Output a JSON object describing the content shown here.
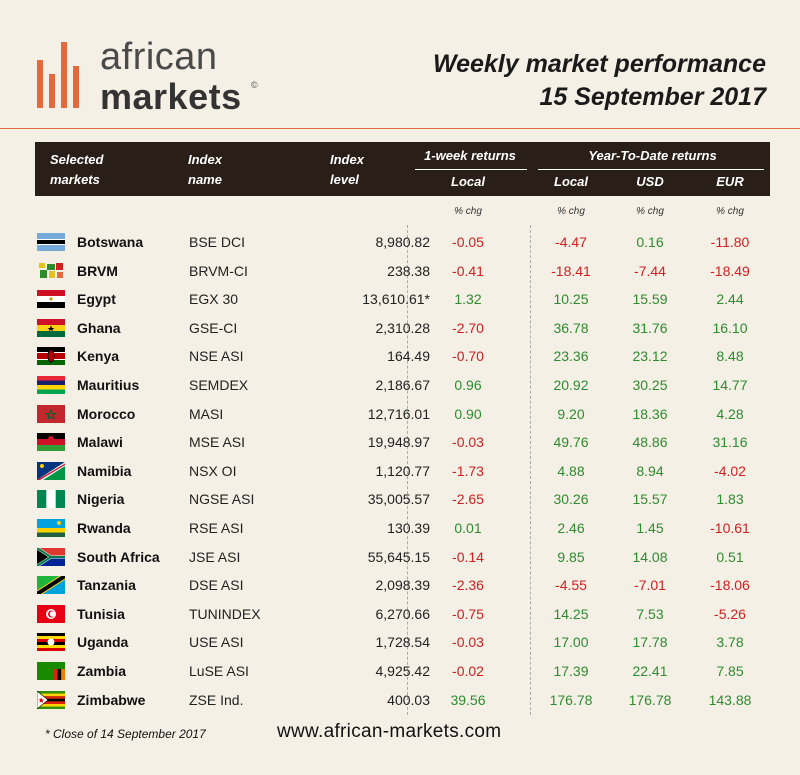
{
  "brand": {
    "line1": "african",
    "line2": "markets",
    "reg": "©"
  },
  "title": {
    "line1": "Weekly market performance",
    "line2": "15 September 2017"
  },
  "header": {
    "col_market": "Selected markets",
    "col_index": "Index name",
    "col_level": "Index level",
    "group_week": "1-week returns",
    "group_ytd": "Year-To-Date returns",
    "sub_week_local": "Local",
    "sub_ytd_local": "Local",
    "sub_ytd_usd": "USD",
    "sub_ytd_eur": "EUR",
    "pct_label": "% chg"
  },
  "footer": {
    "note": "* Close of 14 September 2017",
    "url": "www.african-markets.com"
  },
  "colors": {
    "positive": "#2e8b2e",
    "negative": "#d11f1f",
    "accent": "#e3693c",
    "header_bg": "#2a1e18"
  },
  "chart_data": {
    "type": "table",
    "columns": [
      "Selected markets",
      "Index name",
      "Index level",
      "1-week returns Local % chg",
      "YTD Local % chg",
      "YTD USD % chg",
      "YTD EUR % chg"
    ],
    "rows": [
      {
        "market": "Botswana",
        "flag": "botswana-flag",
        "index": "BSE DCI",
        "level": "8,980.82",
        "week": -0.05,
        "ytd_local": -4.47,
        "ytd_usd": 0.16,
        "ytd_eur": -11.8
      },
      {
        "market": "BRVM",
        "flag": "brvm-flag",
        "index": "BRVM-CI",
        "level": "238.38",
        "week": -0.41,
        "ytd_local": -18.41,
        "ytd_usd": -7.44,
        "ytd_eur": -18.49
      },
      {
        "market": "Egypt",
        "flag": "egypt-flag",
        "index": "EGX 30",
        "level": "13,610.61*",
        "week": 1.32,
        "ytd_local": 10.25,
        "ytd_usd": 15.59,
        "ytd_eur": 2.44
      },
      {
        "market": "Ghana",
        "flag": "ghana-flag",
        "index": "GSE-CI",
        "level": "2,310.28",
        "week": -2.7,
        "ytd_local": 36.78,
        "ytd_usd": 31.76,
        "ytd_eur": 16.1
      },
      {
        "market": "Kenya",
        "flag": "kenya-flag",
        "index": "NSE ASI",
        "level": "164.49",
        "week": -0.7,
        "ytd_local": 23.36,
        "ytd_usd": 23.12,
        "ytd_eur": 8.48
      },
      {
        "market": "Mauritius",
        "flag": "mauritius-flag",
        "index": "SEMDEX",
        "level": "2,186.67",
        "week": 0.96,
        "ytd_local": 20.92,
        "ytd_usd": 30.25,
        "ytd_eur": 14.77
      },
      {
        "market": "Morocco",
        "flag": "morocco-flag",
        "index": "MASI",
        "level": "12,716.01",
        "week": 0.9,
        "ytd_local": 9.2,
        "ytd_usd": 18.36,
        "ytd_eur": 4.28
      },
      {
        "market": "Malawi",
        "flag": "malawi-flag",
        "index": "MSE ASI",
        "level": "19,948.97",
        "week": -0.03,
        "ytd_local": 49.76,
        "ytd_usd": 48.86,
        "ytd_eur": 31.16
      },
      {
        "market": "Namibia",
        "flag": "namibia-flag",
        "index": "NSX OI",
        "level": "1,120.77",
        "week": -1.73,
        "ytd_local": 4.88,
        "ytd_usd": 8.94,
        "ytd_eur": -4.02
      },
      {
        "market": "Nigeria",
        "flag": "nigeria-flag",
        "index": "NGSE ASI",
        "level": "35,005.57",
        "week": -2.65,
        "ytd_local": 30.26,
        "ytd_usd": 15.57,
        "ytd_eur": 1.83
      },
      {
        "market": "Rwanda",
        "flag": "rwanda-flag",
        "index": "RSE ASI",
        "level": "130.39",
        "week": 0.01,
        "ytd_local": 2.46,
        "ytd_usd": 1.45,
        "ytd_eur": -10.61
      },
      {
        "market": "South Africa",
        "flag": "south-africa-flag",
        "index": "JSE ASI",
        "level": "55,645.15",
        "week": -0.14,
        "ytd_local": 9.85,
        "ytd_usd": 14.08,
        "ytd_eur": 0.51
      },
      {
        "market": "Tanzania",
        "flag": "tanzania-flag",
        "index": "DSE ASI",
        "level": "2,098.39",
        "week": -2.36,
        "ytd_local": -4.55,
        "ytd_usd": -7.01,
        "ytd_eur": -18.06
      },
      {
        "market": "Tunisia",
        "flag": "tunisia-flag",
        "index": "TUNINDEX",
        "level": "6,270.66",
        "week": -0.75,
        "ytd_local": 14.25,
        "ytd_usd": 7.53,
        "ytd_eur": -5.26
      },
      {
        "market": "Uganda",
        "flag": "uganda-flag",
        "index": "USE ASI",
        "level": "1,728.54",
        "week": -0.03,
        "ytd_local": 17.0,
        "ytd_usd": 17.78,
        "ytd_eur": 3.78
      },
      {
        "market": "Zambia",
        "flag": "zambia-flag",
        "index": "LuSE ASI",
        "level": "4,925.42",
        "week": -0.02,
        "ytd_local": 17.39,
        "ytd_usd": 22.41,
        "ytd_eur": 7.85
      },
      {
        "market": "Zimbabwe",
        "flag": "zimbabwe-flag",
        "index": "ZSE Ind.",
        "level": "400.03",
        "week": 39.56,
        "ytd_local": 176.78,
        "ytd_usd": 176.78,
        "ytd_eur": 143.88
      }
    ]
  }
}
